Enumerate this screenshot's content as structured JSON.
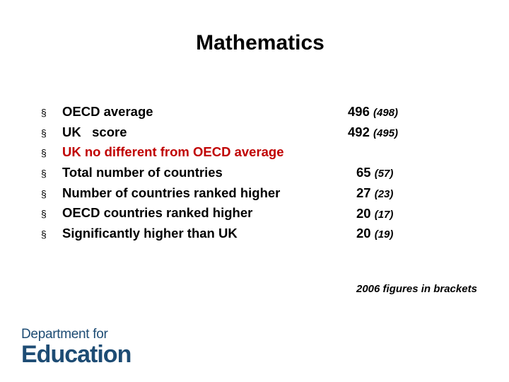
{
  "slide": {
    "title": "Mathematics",
    "bullet_marker": "§",
    "rows": [
      {
        "label": "OECD average",
        "color": "#000000",
        "value": "496",
        "prev": "(498)"
      },
      {
        "label": "UK   score",
        "color": "#000000",
        "value": "492",
        "prev": "(495)"
      },
      {
        "label": "UK no different from OECD average",
        "color": "#c00000",
        "value": "",
        "prev": ""
      },
      {
        "label": "Total number of countries",
        "color": "#000000",
        "value": "65",
        "prev": "(57)"
      },
      {
        "label": "Number of countries ranked higher",
        "color": "#000000",
        "value": "27",
        "prev": "(23)"
      },
      {
        "label": "OECD countries ranked higher",
        "color": "#000000",
        "value": "20",
        "prev": "(17)"
      },
      {
        "label": "Significantly higher than UK",
        "color": "#000000",
        "value": "20",
        "prev": "(19)"
      }
    ],
    "note": "2006 figures in brackets"
  },
  "logo": {
    "line1": "Department for",
    "line2": "Education",
    "color": "#1d4c74"
  }
}
